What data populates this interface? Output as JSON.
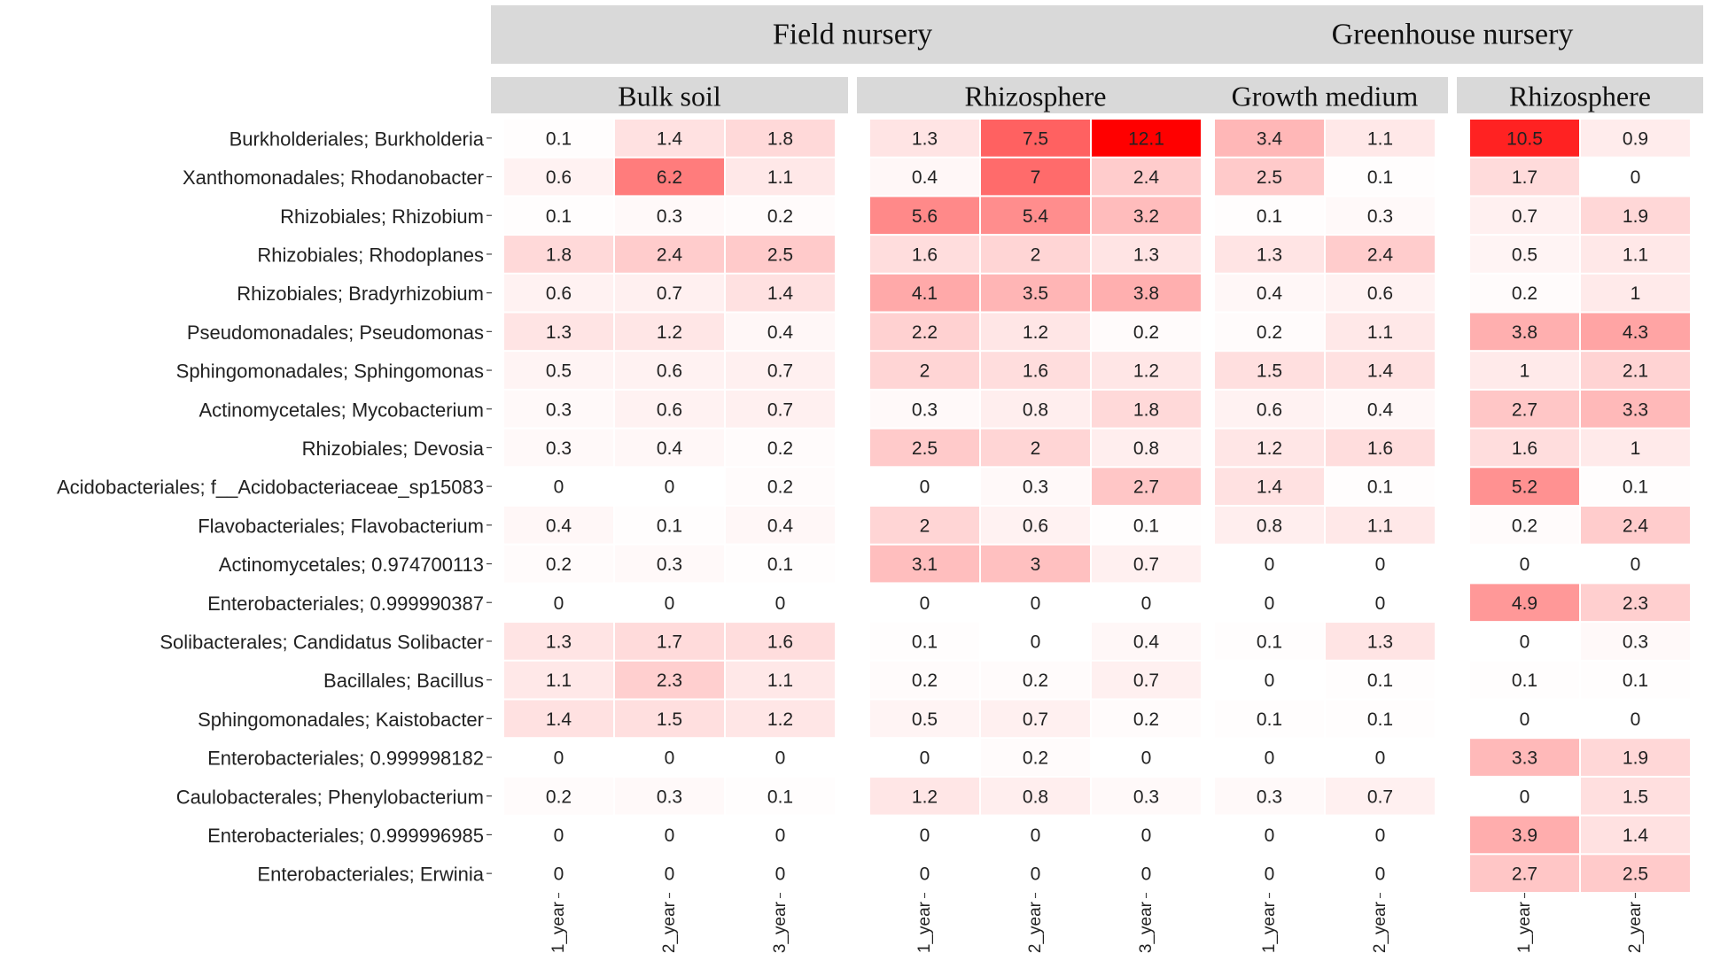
{
  "chart_data": {
    "type": "heatmap",
    "title": "",
    "xlabel": "",
    "ylabel": "",
    "color_low": "#ffffff",
    "color_high": "#ff0000",
    "value_range": [
      0,
      12.1
    ],
    "rows": [
      "Burkholderiales; Burkholderia",
      "Xanthomonadales; Rhodanobacter",
      "Rhizobiales; Rhizobium",
      "Rhizobiales; Rhodoplanes",
      "Rhizobiales; Bradyrhizobium",
      "Pseudomonadales; Pseudomonas",
      "Sphingomonadales; Sphingomonas",
      "Actinomycetales; Mycobacterium",
      "Rhizobiales; Devosia",
      "Acidobacteriales; f__Acidobacteriaceae_sp15083",
      "Flavobacteriales; Flavobacterium",
      "Actinomycetales; 0.974700113",
      "Enterobacteriales; 0.999990387",
      "Solibacterales; Candidatus Solibacter",
      "Bacillales; Bacillus",
      "Sphingomonadales; Kaistobacter",
      "Enterobacteriales; 0.999998182",
      "Caulobacterales; Phenylobacterium",
      "Enterobacteriales; 0.999996985",
      "Enterobacteriales; Erwinia"
    ],
    "groups": [
      {
        "name": "Field nursery",
        "panels": [
          {
            "name": "Bulk soil",
            "columns": [
              "1_year",
              "2_year",
              "3_year"
            ],
            "values": [
              [
                0.1,
                1.4,
                1.8
              ],
              [
                0.6,
                6.2,
                1.1
              ],
              [
                0.1,
                0.3,
                0.2
              ],
              [
                1.8,
                2.4,
                2.5
              ],
              [
                0.6,
                0.7,
                1.4
              ],
              [
                1.3,
                1.2,
                0.4
              ],
              [
                0.5,
                0.6,
                0.7
              ],
              [
                0.3,
                0.6,
                0.7
              ],
              [
                0.3,
                0.4,
                0.2
              ],
              [
                0,
                0,
                0.2
              ],
              [
                0.4,
                0.1,
                0.4
              ],
              [
                0.2,
                0.3,
                0.1
              ],
              [
                0,
                0,
                0
              ],
              [
                1.3,
                1.7,
                1.6
              ],
              [
                1.1,
                2.3,
                1.1
              ],
              [
                1.4,
                1.5,
                1.2
              ],
              [
                0,
                0,
                0
              ],
              [
                0.2,
                0.3,
                0.1
              ],
              [
                0,
                0,
                0
              ],
              [
                0,
                0,
                0
              ]
            ]
          },
          {
            "name": "Rhizosphere",
            "columns": [
              "1_year",
              "2_year",
              "3_year"
            ],
            "values": [
              [
                1.3,
                7.5,
                12.1
              ],
              [
                0.4,
                7,
                2.4
              ],
              [
                5.6,
                5.4,
                3.2
              ],
              [
                1.6,
                2,
                1.3
              ],
              [
                4.1,
                3.5,
                3.8
              ],
              [
                2.2,
                1.2,
                0.2
              ],
              [
                2,
                1.6,
                1.2
              ],
              [
                0.3,
                0.8,
                1.8
              ],
              [
                2.5,
                2,
                0.8
              ],
              [
                0,
                0.3,
                2.7
              ],
              [
                2,
                0.6,
                0.1
              ],
              [
                3.1,
                3,
                0.7
              ],
              [
                0,
                0,
                0
              ],
              [
                0.1,
                0,
                0.4
              ],
              [
                0.2,
                0.2,
                0.7
              ],
              [
                0.5,
                0.7,
                0.2
              ],
              [
                0,
                0.2,
                0
              ],
              [
                1.2,
                0.8,
                0.3
              ],
              [
                0,
                0,
                0
              ],
              [
                0,
                0,
                0
              ]
            ]
          }
        ]
      },
      {
        "name": "Greenhouse nursery",
        "panels": [
          {
            "name": "Growth medium",
            "columns": [
              "1_year",
              "2_year"
            ],
            "values": [
              [
                3.4,
                1.1
              ],
              [
                2.5,
                0.1
              ],
              [
                0.1,
                0.3
              ],
              [
                1.3,
                2.4
              ],
              [
                0.4,
                0.6
              ],
              [
                0.2,
                1.1
              ],
              [
                1.5,
                1.4
              ],
              [
                0.6,
                0.4
              ],
              [
                1.2,
                1.6
              ],
              [
                1.4,
                0.1
              ],
              [
                0.8,
                1.1
              ],
              [
                0,
                0
              ],
              [
                0,
                0
              ],
              [
                0.1,
                1.3
              ],
              [
                0,
                0.1
              ],
              [
                0.1,
                0.1
              ],
              [
                0,
                0
              ],
              [
                0.3,
                0.7
              ],
              [
                0,
                0
              ],
              [
                0,
                0
              ]
            ]
          },
          {
            "name": "Rhizosphere",
            "columns": [
              "1_year",
              "2_year"
            ],
            "values": [
              [
                10.5,
                0.9
              ],
              [
                1.7,
                0
              ],
              [
                0.7,
                1.9
              ],
              [
                0.5,
                1.1
              ],
              [
                0.2,
                1
              ],
              [
                3.8,
                4.3
              ],
              [
                1,
                2.1
              ],
              [
                2.7,
                3.3
              ],
              [
                1.6,
                1
              ],
              [
                5.2,
                0.1
              ],
              [
                0.2,
                2.4
              ],
              [
                0,
                0
              ],
              [
                4.9,
                2.3
              ],
              [
                0,
                0.3
              ],
              [
                0.1,
                0.1
              ],
              [
                0,
                0
              ],
              [
                3.3,
                1.9
              ],
              [
                0,
                1.5
              ],
              [
                3.9,
                1.4
              ],
              [
                2.7,
                2.5
              ]
            ]
          }
        ]
      }
    ]
  }
}
